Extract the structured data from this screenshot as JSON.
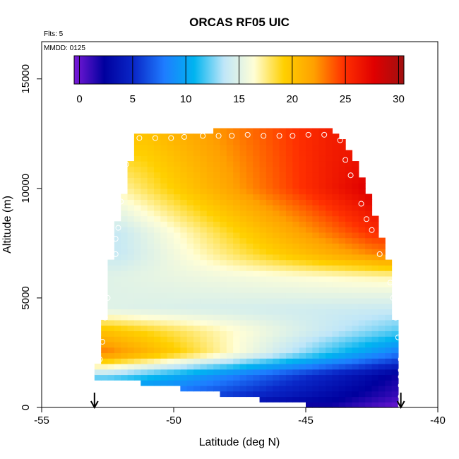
{
  "chart_data": {
    "type": "heatmap",
    "title": "ORCAS RF05 UIC",
    "flts_label": "Flts: 5",
    "mmdd_label": "MMDD: 0125",
    "xlabel": "Latitude (deg N)",
    "ylabel": "Altitude (m)",
    "xlim": [
      -55,
      -40
    ],
    "ylim": [
      0,
      16700
    ],
    "x_ticks": [
      -55,
      -50,
      -45,
      -40
    ],
    "x_tick_labels": [
      "-55",
      "-50",
      "-45",
      "-40"
    ],
    "y_ticks": [
      0,
      5000,
      10000,
      15000
    ],
    "y_tick_labels": [
      "0",
      "5000",
      "10000",
      "15000"
    ],
    "colorbar": {
      "range": [
        -0.5,
        30.5
      ],
      "ticks": [
        0,
        5,
        10,
        15,
        20,
        25,
        30
      ],
      "tick_labels": [
        "0",
        "5",
        "10",
        "15",
        "20",
        "25",
        "30"
      ],
      "color_stops": [
        "#7a19d8",
        "#00009e",
        "#0a28c8",
        "#1e7cff",
        "#00b4f0",
        "#bfe6f8",
        "#fffed6",
        "#ffd000",
        "#ffa000",
        "#ff3000",
        "#e00000",
        "#a01010"
      ]
    },
    "value_field": {
      "anchors": [
        {
          "alt": 12400,
          "lat_west": -51.0,
          "lat_east": -44.0,
          "value_west": 20,
          "value_east": 26
        },
        {
          "alt": 10000,
          "lat_west": -52.0,
          "lat_east": -42.5,
          "value_west": 17,
          "value_east": 28
        },
        {
          "alt": 8000,
          "lat_west": -52.0,
          "lat_east": -42.5,
          "value_west": 14,
          "value_east": 25
        },
        {
          "alt": 7000,
          "lat_west": -52.0,
          "lat_east": -42.0,
          "value_west": 14,
          "value_east": 23
        },
        {
          "alt": 6000,
          "lat_west": -52.5,
          "lat_east": -42.0,
          "value_west": 15,
          "value_east": 17
        },
        {
          "alt": 4500,
          "lat_west": -52.5,
          "lat_east": -41.5,
          "value_west": 15,
          "value_east": 14
        },
        {
          "alt": 3500,
          "lat_west": -52.5,
          "lat_east": -41.5,
          "value_west": 20,
          "value_east": 12
        },
        {
          "alt": 2500,
          "lat_west": -52.5,
          "lat_east": -41.5,
          "value_west": 23,
          "value_east": 8
        },
        {
          "alt": 1500,
          "lat_west": -52.5,
          "lat_east": -41.5,
          "value_west": 13,
          "value_east": 2
        },
        {
          "alt": 500,
          "lat_west": -50.0,
          "lat_east": -41.5,
          "value_west": 7,
          "value_east": 1
        },
        {
          "alt": 100,
          "lat_west": -44.0,
          "lat_east": -41.5,
          "value_west": 2,
          "value_east": 0
        }
      ],
      "envelope": [
        {
          "alt": 0,
          "lat_min": -44.0,
          "lat_max": -41.4
        },
        {
          "alt": 600,
          "lat_min": -48.2,
          "lat_max": -41.4
        },
        {
          "alt": 1050,
          "lat_min": -50.6,
          "lat_max": -41.4
        },
        {
          "alt": 1300,
          "lat_min": -52.9,
          "lat_max": -41.4
        },
        {
          "alt": 1800,
          "lat_min": -52.9,
          "lat_max": -41.5
        },
        {
          "alt": 2100,
          "lat_min": -52.8,
          "lat_max": -41.5
        },
        {
          "alt": 3900,
          "lat_min": -52.8,
          "lat_max": -41.6
        },
        {
          "alt": 4200,
          "lat_min": -52.5,
          "lat_max": -41.7
        },
        {
          "alt": 6000,
          "lat_min": -52.5,
          "lat_max": -41.8
        },
        {
          "alt": 7000,
          "lat_min": -52.3,
          "lat_max": -41.9
        },
        {
          "alt": 7500,
          "lat_min": -52.3,
          "lat_max": -42.1
        },
        {
          "alt": 8500,
          "lat_min": -52.1,
          "lat_max": -42.3
        },
        {
          "alt": 9600,
          "lat_min": -51.9,
          "lat_max": -42.6
        },
        {
          "alt": 10600,
          "lat_min": -51.8,
          "lat_max": -42.9
        },
        {
          "alt": 11600,
          "lat_min": -51.5,
          "lat_max": -43.3
        },
        {
          "alt": 12200,
          "lat_min": -51.5,
          "lat_max": -43.6
        },
        {
          "alt": 12500,
          "lat_min": -51.5,
          "lat_max": -44.0
        },
        {
          "alt": 12800,
          "lat_min": -44.3,
          "lat_max": -44.0
        }
      ]
    },
    "flight_points": [
      {
        "lat": -51.3,
        "alt": 12300
      },
      {
        "lat": -50.7,
        "alt": 12300
      },
      {
        "lat": -50.1,
        "alt": 12300
      },
      {
        "lat": -49.6,
        "alt": 12350
      },
      {
        "lat": -48.9,
        "alt": 12400
      },
      {
        "lat": -48.3,
        "alt": 12400
      },
      {
        "lat": -47.8,
        "alt": 12400
      },
      {
        "lat": -47.2,
        "alt": 12450
      },
      {
        "lat": -46.6,
        "alt": 12400
      },
      {
        "lat": -46.0,
        "alt": 12400
      },
      {
        "lat": -45.5,
        "alt": 12400
      },
      {
        "lat": -44.9,
        "alt": 12450
      },
      {
        "lat": -44.3,
        "alt": 12450
      },
      {
        "lat": -43.7,
        "alt": 12200
      },
      {
        "lat": -43.5,
        "alt": 11300
      },
      {
        "lat": -43.3,
        "alt": 10600
      },
      {
        "lat": -42.9,
        "alt": 9300
      },
      {
        "lat": -42.7,
        "alt": 8600
      },
      {
        "lat": -42.5,
        "alt": 8100
      },
      {
        "lat": -42.2,
        "alt": 7000
      },
      {
        "lat": -41.8,
        "alt": 5700
      },
      {
        "lat": -41.7,
        "alt": 5000
      },
      {
        "lat": -41.6,
        "alt": 4100
      },
      {
        "lat": -41.5,
        "alt": 3200
      },
      {
        "lat": -41.4,
        "alt": 2200
      },
      {
        "lat": -41.4,
        "alt": 1700
      },
      {
        "lat": -41.4,
        "alt": 1400
      },
      {
        "lat": -41.4,
        "alt": 1000
      },
      {
        "lat": -41.4,
        "alt": 500
      },
      {
        "lat": -41.4,
        "alt": 100
      },
      {
        "lat": -51.8,
        "alt": 12100
      },
      {
        "lat": -51.8,
        "alt": 11100
      },
      {
        "lat": -51.9,
        "alt": 10800
      },
      {
        "lat": -52.0,
        "alt": 9400
      },
      {
        "lat": -52.1,
        "alt": 8200
      },
      {
        "lat": -52.2,
        "alt": 7700
      },
      {
        "lat": -52.2,
        "alt": 7000
      },
      {
        "lat": -52.5,
        "alt": 5000
      },
      {
        "lat": -52.6,
        "alt": 4100
      },
      {
        "lat": -52.7,
        "alt": 3000
      },
      {
        "lat": -52.8,
        "alt": 2200
      }
    ],
    "markers": [
      {
        "type": "arrow",
        "lat": -53.0
      },
      {
        "type": "arrow",
        "lat": -41.4
      }
    ]
  }
}
